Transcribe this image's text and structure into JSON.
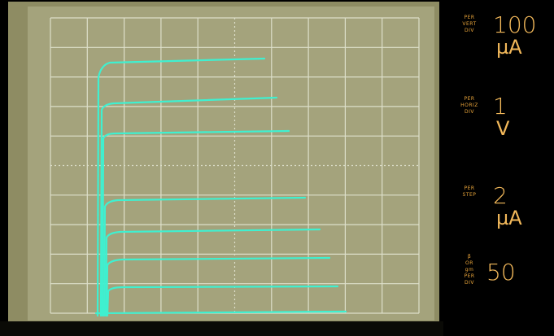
{
  "readouts": [
    {
      "label": [
        "PER",
        "VERT",
        "DIV"
      ],
      "value": "100",
      "unit": "µA"
    },
    {
      "label": [
        "PER",
        "HORIZ",
        "DIV"
      ],
      "value": "1",
      "unit": "V"
    },
    {
      "label": [
        "PER",
        "STEP"
      ],
      "value": "2",
      "unit": "µA"
    },
    {
      "label": [
        "β",
        "OR",
        "gm",
        "PER",
        "DIV"
      ],
      "value": "50"
    }
  ]
}
